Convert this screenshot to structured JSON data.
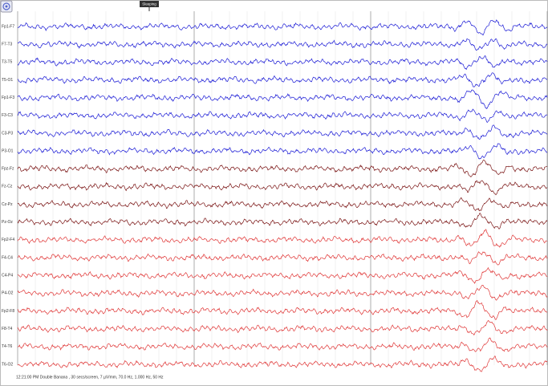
{
  "annotation": "Sleeping",
  "channels": [
    {
      "label": "Fp1-F7",
      "group": "left"
    },
    {
      "label": "F7-T3",
      "group": "left"
    },
    {
      "label": "T3-T5",
      "group": "left"
    },
    {
      "label": "T5-O1",
      "group": "left"
    },
    {
      "label": "Fp1-F3",
      "group": "left"
    },
    {
      "label": "F3-C3",
      "group": "left"
    },
    {
      "label": "C3-P3",
      "group": "left"
    },
    {
      "label": "P3-O1",
      "group": "left"
    },
    {
      "label": "Fpz-Fz",
      "group": "mid"
    },
    {
      "label": "Fz-Cz",
      "group": "mid"
    },
    {
      "label": "Cz-Pz",
      "group": "mid"
    },
    {
      "label": "Pz-Oz",
      "group": "mid"
    },
    {
      "label": "Fp2-F4",
      "group": "right"
    },
    {
      "label": "F4-C4",
      "group": "right"
    },
    {
      "label": "C4-P4",
      "group": "right"
    },
    {
      "label": "P4-O2",
      "group": "right"
    },
    {
      "label": "Fp2-F8",
      "group": "right"
    },
    {
      "label": "F8-T4",
      "group": "right"
    },
    {
      "label": "T4-T6",
      "group": "right"
    },
    {
      "label": "T6-O2",
      "group": "right"
    }
  ],
  "footer": "12:21:00 PM Double Banana , 30 secs/screen, 7 µV/mm, 70.0 Hz, 1.000 Hz, 50 Hz"
}
